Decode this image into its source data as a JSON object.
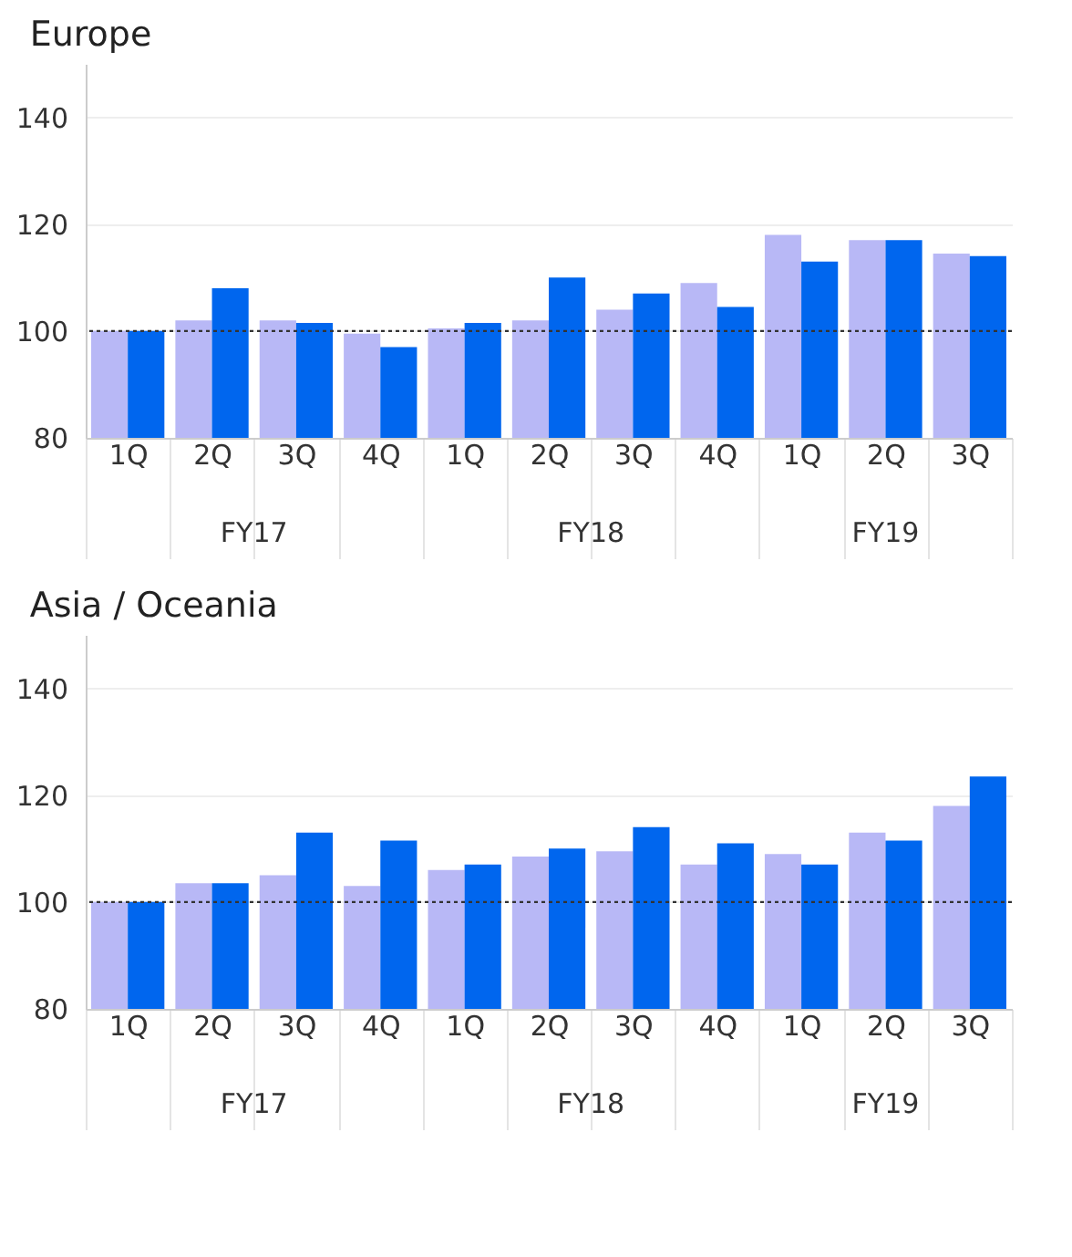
{
  "chart_data": [
    {
      "type": "bar",
      "title": "Europe",
      "categories": [
        "1Q",
        "2Q",
        "3Q",
        "4Q",
        "1Q",
        "2Q",
        "3Q",
        "4Q",
        "1Q",
        "2Q",
        "3Q"
      ],
      "series": [
        {
          "color": "#b8b8f6",
          "values": [
            100,
            102,
            102,
            99.5,
            100.5,
            102,
            104,
            109,
            118,
            117,
            114.5
          ]
        },
        {
          "color": "#0066ee",
          "values": [
            100,
            108,
            101.5,
            97,
            101.5,
            110,
            107,
            104.5,
            113,
            117,
            114
          ]
        }
      ],
      "annotations": [
        "FY17",
        "FY18",
        "FY19"
      ],
      "ylim": [
        80,
        150
      ],
      "yticks": [
        80,
        100,
        120,
        140
      ],
      "grid": "y",
      "legend": false,
      "ref_lines": [
        {
          "axis": "y",
          "value": 100,
          "color": "#333333",
          "line_style": "dotted"
        }
      ]
    },
    {
      "type": "bar",
      "title": "Asia / Oceania",
      "categories": [
        "1Q",
        "2Q",
        "3Q",
        "4Q",
        "1Q",
        "2Q",
        "3Q",
        "4Q",
        "1Q",
        "2Q",
        "3Q"
      ],
      "series": [
        {
          "color": "#b8b8f6",
          "values": [
            100,
            103.5,
            105,
            103,
            106,
            108.5,
            109.5,
            107,
            109,
            113,
            118
          ]
        },
        {
          "color": "#0066ee",
          "values": [
            100,
            103.5,
            113,
            111.5,
            107,
            110,
            114,
            111,
            107,
            111.5,
            123.5
          ]
        }
      ],
      "annotations": [
        "FY17",
        "FY18",
        "FY19"
      ],
      "ylim": [
        80,
        150
      ],
      "yticks": [
        80,
        100,
        120,
        140
      ],
      "grid": "y",
      "legend": false,
      "ref_lines": [
        {
          "axis": "y",
          "value": 100,
          "color": "#333333",
          "line_style": "dotted"
        }
      ]
    }
  ]
}
